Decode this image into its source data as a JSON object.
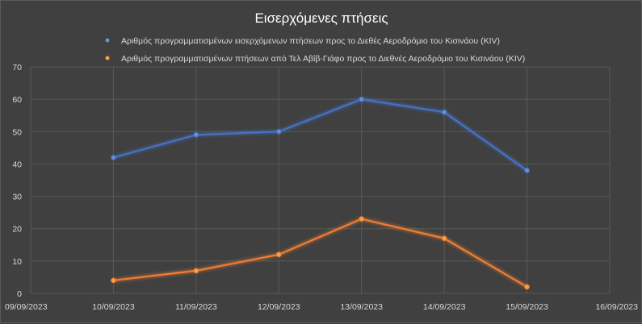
{
  "chart_data": {
    "type": "line",
    "title": "Εισερχόμενες πτήσεις",
    "x": [
      "09/09/2023",
      "10/09/2023",
      "11/09/2023",
      "12/09/2023",
      "13/09/2023",
      "14/09/2023",
      "15/09/2023",
      "16/09/2023"
    ],
    "x_tick_labels": [
      "09/09/2023",
      "10/09/2023",
      "11/09/2023",
      "12/09/2023",
      "13/09/2023",
      "14/09/2023",
      "15/09/2023",
      "16/09/2023"
    ],
    "y_tick_labels": [
      "0",
      "10",
      "20",
      "30",
      "40",
      "50",
      "60",
      "70"
    ],
    "ylim": [
      0,
      70
    ],
    "grid": true,
    "legend_position": "top",
    "series": [
      {
        "name": "Αριθμός προγραμματισμένων εισερχόμενων  πτήσεων προς το Διεθές Αεροδρόμιο του Κισινάου (KIV)",
        "color": "#4472c4",
        "glow": "#6a8fe0",
        "x": [
          "10/09/2023",
          "11/09/2023",
          "12/09/2023",
          "13/09/2023",
          "14/09/2023",
          "15/09/2023"
        ],
        "values": [
          42,
          49,
          50,
          60,
          56,
          38
        ]
      },
      {
        "name": "Αριθμός προγραμματισμένων πτήσεων  από Τελ Αβίβ-Γιάφο προς το Διεθνές Αεροδρόμιο του Κισινάου (KIV)",
        "color": "#ed7d31",
        "glow": "#f5a24f",
        "x": [
          "10/09/2023",
          "11/09/2023",
          "12/09/2023",
          "13/09/2023",
          "14/09/2023",
          "15/09/2023"
        ],
        "values": [
          4,
          7,
          12,
          23,
          17,
          2
        ]
      }
    ]
  }
}
